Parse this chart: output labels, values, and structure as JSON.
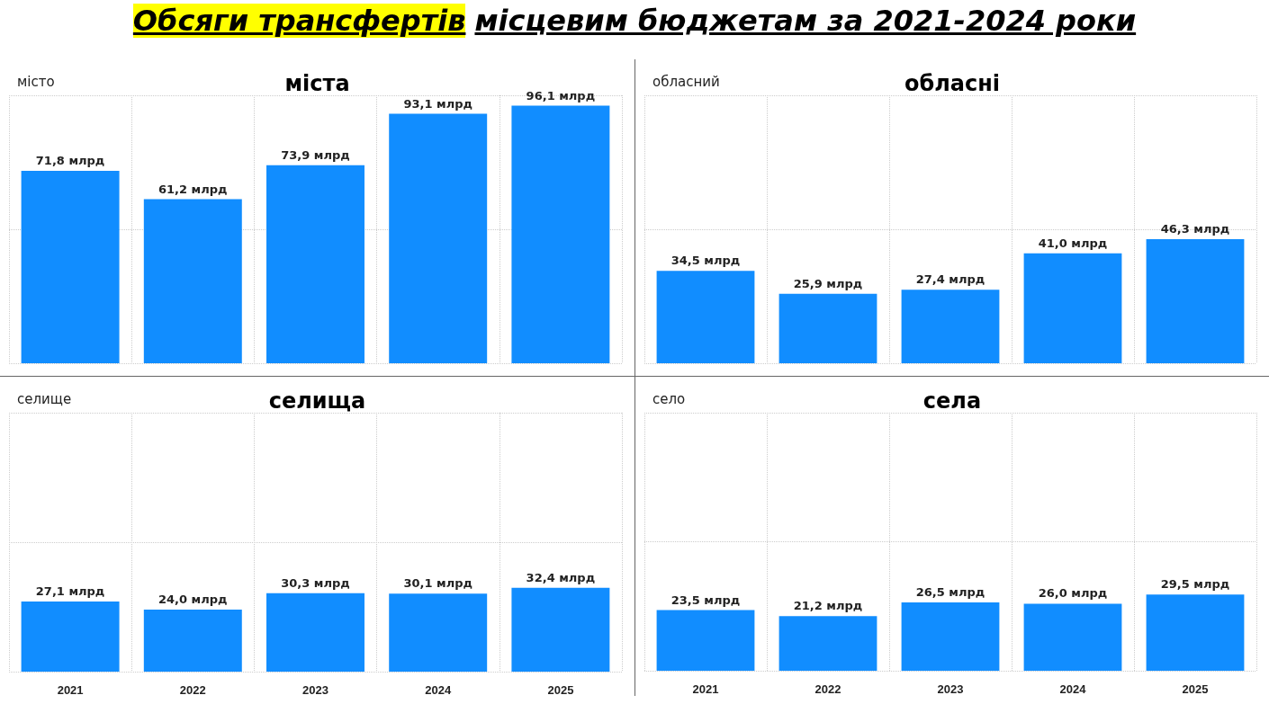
{
  "chart_data": [
    {
      "type": "bar",
      "title": "міста",
      "subtitle": "місто",
      "annotations": [
        "Обсяги трансфертів",
        "місцевим бюджетам за 2021-2024 роки"
      ],
      "categories": [
        "2021",
        "2022",
        "2023",
        "2024",
        "2025"
      ],
      "values": [
        71.8,
        61.2,
        73.9,
        93.1,
        96.1
      ],
      "value_labels": [
        "71,8 млрд",
        "61,2 млрд",
        "73,9 млрд",
        "93,1 млрд",
        "96,1 млрд"
      ],
      "color": "#118dff",
      "ylim": [
        0,
        100
      ],
      "yticks": [
        {
          "value": 0,
          "label": null
        },
        {
          "value": 50,
          "label": null
        },
        {
          "value": 100,
          "label": null
        }
      ],
      "grid": true,
      "tick_labels": false
    },
    {
      "type": "bar",
      "title": "обласні",
      "subtitle": "обласний",
      "categories": [
        "2021",
        "2022",
        "2023",
        "2024",
        "2025"
      ],
      "values": [
        34.5,
        25.9,
        27.4,
        41.0,
        46.3
      ],
      "value_labels": [
        "34,5 млрд",
        "25,9 млрд",
        "27,4 млрд",
        "41,0 млрд",
        "46,3 млрд"
      ],
      "color": "#118dff",
      "ylim": [
        0,
        100
      ],
      "yticks": [
        {
          "value": 0,
          "label": null
        },
        {
          "value": 50,
          "label": null
        },
        {
          "value": 100,
          "label": null
        }
      ],
      "grid": true,
      "tick_labels": false
    },
    {
      "type": "bar",
      "title": "селища",
      "subtitle": "селище",
      "categories": [
        "2021",
        "2022",
        "2023",
        "2024",
        "2025"
      ],
      "values": [
        27.1,
        24.0,
        30.3,
        30.1,
        32.4
      ],
      "value_labels": [
        "27,1 млрд",
        "24,0 млрд",
        "30,3 млрд",
        "30,1 млрд",
        "32,4 млрд"
      ],
      "color": "#118dff",
      "ylim": [
        0,
        100
      ],
      "yticks": [
        {
          "value": 0,
          "label": null
        },
        {
          "value": 50,
          "label": null
        },
        {
          "value": 100,
          "label": null
        }
      ],
      "grid": true,
      "tick_labels": "x"
    },
    {
      "type": "bar",
      "title": "села",
      "subtitle": "село",
      "categories": [
        "2021",
        "2022",
        "2023",
        "2024",
        "2025"
      ],
      "values": [
        23.5,
        21.2,
        26.5,
        26.0,
        29.5
      ],
      "value_labels": [
        "23,5 млрд",
        "21,2 млрд",
        "26,5 млрд",
        "26,0 млрд",
        "29,5 млрд"
      ],
      "color": "#118dff",
      "ylim": [
        0,
        100
      ],
      "yticks": [
        {
          "value": 0,
          "label": null
        },
        {
          "value": 50,
          "label": null
        },
        {
          "value": 100,
          "label": null
        }
      ],
      "grid": true,
      "tick_labels": "x"
    }
  ]
}
